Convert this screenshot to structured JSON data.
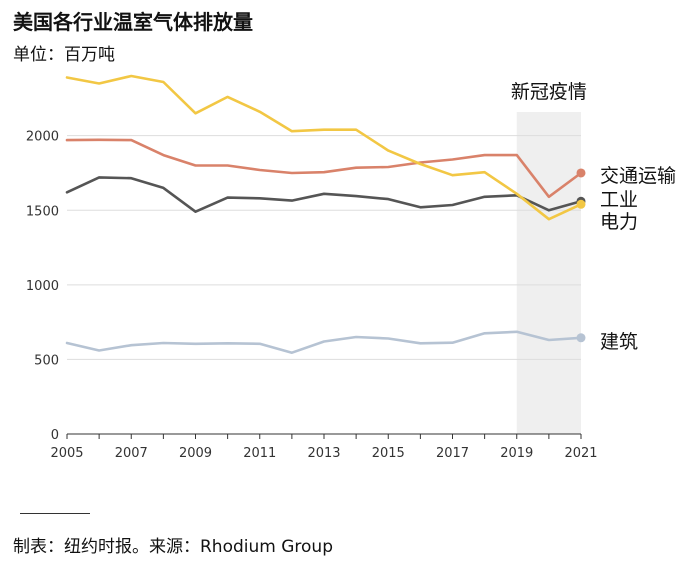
{
  "header": {
    "title": "美国各行业温室气体排放量",
    "unit": "单位：百万吨"
  },
  "footer": {
    "source": "制表：纽约时报。来源：Rhodium Group"
  },
  "chart_data": {
    "type": "line",
    "title": "美国各行业温室气体排放量",
    "subtitle": "单位：百万吨",
    "xlabel": "",
    "ylabel": "",
    "x": [
      2005,
      2006,
      2007,
      2008,
      2009,
      2010,
      2011,
      2012,
      2013,
      2014,
      2015,
      2016,
      2017,
      2018,
      2019,
      2020,
      2021
    ],
    "xlim": [
      2005,
      2021
    ],
    "ylim": [
      0,
      2400
    ],
    "x_ticks": [
      2005,
      2007,
      2009,
      2011,
      2013,
      2015,
      2017,
      2019,
      2021
    ],
    "y_ticks": [
      0,
      500,
      1000,
      1500,
      2000
    ],
    "grid": "horizontal",
    "legend": "direct labels at line ends",
    "highlight_band": {
      "x_from": 2019,
      "x_to": 2021,
      "label": "新冠疫情",
      "color": "#efefef"
    },
    "series": [
      {
        "name": "交通运输",
        "color": "#d9826a",
        "values": [
          1970,
          1972,
          1970,
          1870,
          1800,
          1800,
          1770,
          1750,
          1755,
          1785,
          1790,
          1820,
          1840,
          1870,
          1870,
          1590,
          1750
        ]
      },
      {
        "name": "工业",
        "color": "#555555",
        "values": [
          1620,
          1720,
          1715,
          1650,
          1490,
          1585,
          1580,
          1565,
          1610,
          1595,
          1575,
          1520,
          1535,
          1590,
          1600,
          1500,
          1560
        ]
      },
      {
        "name": "电力",
        "color": "#f2c744",
        "values": [
          2390,
          2350,
          2400,
          2360,
          2150,
          2260,
          2160,
          2030,
          2040,
          2040,
          1900,
          1810,
          1735,
          1755,
          1610,
          1440,
          1540
        ]
      },
      {
        "name": "建筑",
        "color": "#b6c3d3",
        "values": [
          610,
          560,
          595,
          610,
          605,
          608,
          605,
          545,
          620,
          650,
          640,
          608,
          612,
          675,
          685,
          630,
          645
        ]
      }
    ]
  }
}
